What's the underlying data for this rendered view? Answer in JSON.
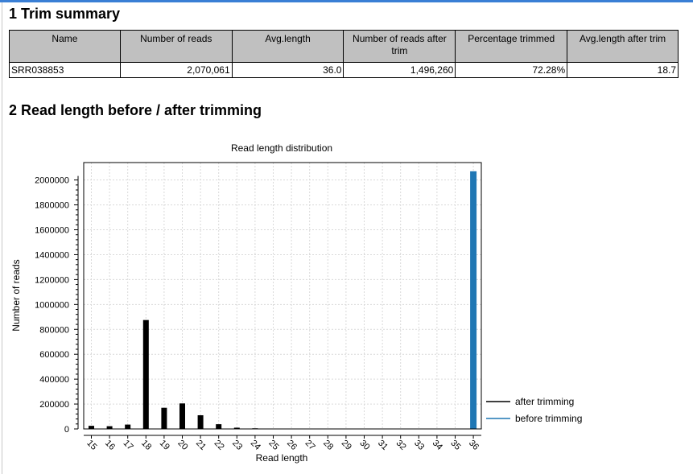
{
  "sections": {
    "trim_summary_title": "1 Trim summary",
    "read_length_title": "2 Read length before / after trimming"
  },
  "table": {
    "headers": [
      "Name",
      "Number of reads",
      "Avg.length",
      "Number of reads after trim",
      "Percentage trimmed",
      "Avg.length after trim"
    ],
    "rows": [
      [
        "SRR038853",
        "2,070,061",
        "36.0",
        "1,496,260",
        "72.28%",
        "18.7"
      ]
    ]
  },
  "chart_data": {
    "type": "bar",
    "title": "Read length distribution",
    "xlabel": "Read length",
    "ylabel": "Number of reads",
    "categories": [
      "15",
      "16",
      "17",
      "18",
      "19",
      "20",
      "21",
      "22",
      "23",
      "24",
      "25",
      "26",
      "27",
      "28",
      "29",
      "30",
      "31",
      "32",
      "33",
      "34",
      "35",
      "36"
    ],
    "series": [
      {
        "name": "after trimming",
        "color": "#000000",
        "values": [
          25000,
          22000,
          35000,
          875000,
          170000,
          205000,
          110000,
          38000,
          10000,
          5000,
          0,
          0,
          0,
          0,
          0,
          0,
          0,
          0,
          0,
          0,
          0,
          0
        ]
      },
      {
        "name": "before trimming",
        "color": "#1f77b4",
        "values": [
          0,
          0,
          0,
          0,
          0,
          0,
          0,
          0,
          0,
          0,
          0,
          0,
          0,
          0,
          0,
          0,
          0,
          0,
          0,
          0,
          0,
          2070061
        ]
      }
    ],
    "yticks": [
      0,
      200000,
      400000,
      600000,
      800000,
      1000000,
      1200000,
      1400000,
      1600000,
      1800000,
      2000000
    ],
    "ylim": [
      0,
      2140000
    ],
    "grid": true,
    "legend_position": "right"
  }
}
